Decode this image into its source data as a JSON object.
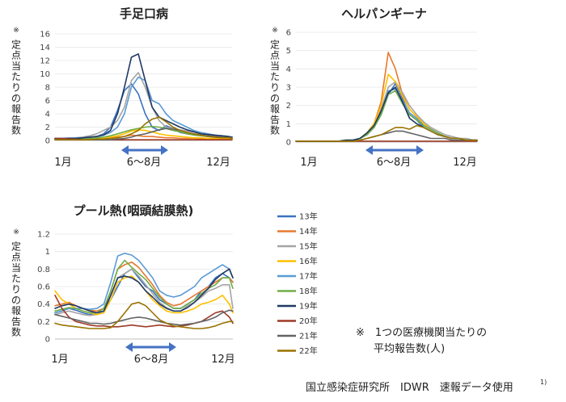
{
  "y_axis_label": "※定点当たりの報告数",
  "note": {
    "line1": "※　1つの医療機関当たりの",
    "line2": "平均報告数(人)"
  },
  "source": "国立感染症研究所　IDWR　速報データ使用",
  "source_sup": "1)",
  "legend_title": "",
  "chart_data": [
    {
      "type": "line",
      "title": "手足口病",
      "x_labels": {
        "start": "1月",
        "end": "12月"
      },
      "season_label": "6～8月",
      "ylim": [
        0,
        16
      ],
      "yticks": [
        0,
        2,
        4,
        6,
        8,
        10,
        12,
        14,
        16
      ],
      "x": [
        1,
        3,
        5,
        7,
        9,
        11,
        13,
        15,
        17,
        19,
        21,
        23,
        25,
        27,
        29,
        31,
        33,
        35,
        37,
        39,
        41,
        43,
        45,
        47,
        49,
        51,
        52
      ],
      "series": [
        {
          "name": "13年",
          "color": "#3a72c0",
          "values": [
            0.3,
            0.3,
            0.3,
            0.3,
            0.4,
            0.5,
            0.6,
            1.0,
            2.0,
            4.5,
            7.5,
            8.5,
            7.0,
            4.0,
            2.0,
            1.5,
            2.2,
            1.8,
            1.2,
            1.0,
            0.9,
            0.8,
            0.6,
            0.5,
            0.5,
            0.4,
            0.3
          ]
        },
        {
          "name": "14年",
          "color": "#e8782f",
          "values": [
            0.2,
            0.2,
            0.2,
            0.2,
            0.2,
            0.2,
            0.3,
            0.3,
            0.4,
            0.5,
            0.6,
            0.8,
            0.7,
            0.6,
            0.6,
            0.5,
            0.4,
            0.4,
            0.3,
            0.3,
            0.3,
            0.2,
            0.2,
            0.2,
            0.2,
            0.2,
            0.2
          ]
        },
        {
          "name": "15年",
          "color": "#a5a5a5",
          "values": [
            0.3,
            0.3,
            0.4,
            0.4,
            0.5,
            0.7,
            1.0,
            1.5,
            2.0,
            3.0,
            5.0,
            9.0,
            10.2,
            8.0,
            5.0,
            3.0,
            2.0,
            1.8,
            1.6,
            1.4,
            1.3,
            1.2,
            1.0,
            0.8,
            0.6,
            0.5,
            0.4
          ]
        },
        {
          "name": "16年",
          "color": "#ffc000",
          "values": [
            0.2,
            0.2,
            0.2,
            0.2,
            0.2,
            0.3,
            0.3,
            0.4,
            0.5,
            0.7,
            1.0,
            1.4,
            1.6,
            1.5,
            1.3,
            1.0,
            0.8,
            0.7,
            0.6,
            0.5,
            0.4,
            0.4,
            0.3,
            0.3,
            0.3,
            0.3,
            0.2
          ]
        },
        {
          "name": "17年",
          "color": "#5b9bd5",
          "values": [
            0.3,
            0.3,
            0.3,
            0.4,
            0.4,
            0.5,
            0.6,
            0.8,
            1.2,
            2.0,
            4.0,
            8.0,
            9.5,
            9.0,
            6.0,
            5.5,
            4.0,
            3.0,
            2.5,
            2.0,
            1.5,
            1.2,
            1.0,
            0.8,
            0.7,
            0.6,
            0.5
          ]
        },
        {
          "name": "18年",
          "color": "#70ad47",
          "values": [
            0.2,
            0.2,
            0.2,
            0.2,
            0.3,
            0.3,
            0.4,
            0.5,
            0.7,
            1.0,
            1.3,
            1.6,
            1.8,
            2.0,
            2.1,
            2.0,
            1.8,
            1.5,
            1.3,
            1.0,
            0.8,
            0.7,
            0.6,
            0.5,
            0.5,
            0.4,
            0.4
          ]
        },
        {
          "name": "19年",
          "color": "#1f3864",
          "values": [
            0.3,
            0.3,
            0.3,
            0.3,
            0.4,
            0.5,
            0.6,
            0.8,
            1.5,
            4.0,
            8.0,
            12.5,
            13.0,
            9.0,
            5.0,
            3.5,
            3.0,
            2.5,
            2.0,
            1.6,
            1.3,
            1.0,
            0.9,
            0.8,
            0.7,
            0.6,
            0.5
          ]
        },
        {
          "name": "20年",
          "color": "#9e3a26",
          "values": [
            0.3,
            0.3,
            0.2,
            0.2,
            0.1,
            0.1,
            0.1,
            0.1,
            0.1,
            0.1,
            0.1,
            0.1,
            0.1,
            0.1,
            0.1,
            0.1,
            0.1,
            0.1,
            0.1,
            0.1,
            0.1,
            0.1,
            0.1,
            0.1,
            0.1,
            0.1,
            0.1
          ]
        },
        {
          "name": "21年",
          "color": "#636363",
          "values": [
            0.1,
            0.1,
            0.1,
            0.1,
            0.1,
            0.1,
            0.1,
            0.1,
            0.1,
            0.2,
            0.3,
            0.5,
            0.8,
            1.0,
            1.3,
            1.6,
            1.8,
            1.7,
            1.5,
            1.2,
            1.0,
            0.8,
            0.7,
            0.6,
            0.5,
            0.4,
            0.4
          ]
        },
        {
          "name": "22年",
          "color": "#997300",
          "values": [
            0.1,
            0.1,
            0.1,
            0.1,
            0.1,
            0.1,
            0.2,
            0.2,
            0.3,
            0.4,
            0.6,
            1.0,
            1.5,
            2.5,
            3.2,
            3.5,
            2.8,
            2.0,
            1.5,
            1.2,
            1.0,
            0.8,
            0.6,
            0.5,
            0.4,
            0.4,
            0.3
          ]
        }
      ]
    },
    {
      "type": "line",
      "title": "ヘルパンギーナ",
      "x_labels": {
        "start": "1月",
        "end": "12月"
      },
      "season_label": "6～8月",
      "ylim": [
        0,
        6
      ],
      "yticks": [
        0,
        1,
        2,
        3,
        4,
        5,
        6
      ],
      "x": [
        1,
        3,
        5,
        7,
        9,
        11,
        13,
        15,
        17,
        19,
        21,
        23,
        25,
        27,
        29,
        31,
        33,
        35,
        37,
        39,
        41,
        43,
        45,
        47,
        49,
        51,
        52
      ],
      "series": [
        {
          "name": "13年",
          "color": "#3a72c0",
          "values": [
            0.05,
            0.05,
            0.05,
            0.05,
            0.05,
            0.05,
            0.05,
            0.1,
            0.1,
            0.2,
            0.4,
            0.8,
            1.5,
            2.6,
            3.2,
            2.4,
            1.5,
            1.2,
            0.8,
            0.6,
            0.4,
            0.3,
            0.2,
            0.2,
            0.1,
            0.1,
            0.1
          ]
        },
        {
          "name": "14年",
          "color": "#e8782f",
          "values": [
            0.05,
            0.05,
            0.05,
            0.05,
            0.05,
            0.05,
            0.05,
            0.1,
            0.1,
            0.2,
            0.5,
            1.0,
            2.2,
            4.9,
            4.0,
            2.6,
            1.8,
            1.4,
            1.0,
            0.7,
            0.5,
            0.3,
            0.2,
            0.2,
            0.1,
            0.1,
            0.1
          ]
        },
        {
          "name": "15年",
          "color": "#a5a5a5",
          "values": [
            0.05,
            0.05,
            0.05,
            0.05,
            0.05,
            0.05,
            0.05,
            0.1,
            0.1,
            0.2,
            0.4,
            0.9,
            1.8,
            3.0,
            3.3,
            2.7,
            2.0,
            1.5,
            1.1,
            0.8,
            0.6,
            0.4,
            0.3,
            0.2,
            0.2,
            0.1,
            0.1
          ]
        },
        {
          "name": "16年",
          "color": "#ffc000",
          "values": [
            0.05,
            0.05,
            0.05,
            0.05,
            0.05,
            0.05,
            0.05,
            0.1,
            0.1,
            0.2,
            0.5,
            1.0,
            2.0,
            3.7,
            3.3,
            2.5,
            1.8,
            1.4,
            1.0,
            0.7,
            0.5,
            0.3,
            0.2,
            0.2,
            0.1,
            0.1,
            0.1
          ]
        },
        {
          "name": "17年",
          "color": "#5b9bd5",
          "values": [
            0.05,
            0.05,
            0.05,
            0.05,
            0.05,
            0.05,
            0.05,
            0.1,
            0.1,
            0.2,
            0.4,
            0.8,
            1.6,
            2.8,
            2.9,
            2.3,
            1.6,
            1.3,
            0.9,
            0.7,
            0.5,
            0.3,
            0.2,
            0.2,
            0.1,
            0.1,
            0.1
          ]
        },
        {
          "name": "18年",
          "color": "#70ad47",
          "values": [
            0.05,
            0.05,
            0.05,
            0.05,
            0.05,
            0.05,
            0.05,
            0.1,
            0.1,
            0.2,
            0.4,
            0.8,
            1.5,
            2.6,
            2.8,
            2.1,
            1.5,
            1.2,
            0.9,
            0.7,
            0.5,
            0.3,
            0.2,
            0.2,
            0.1,
            0.1,
            0.1
          ]
        },
        {
          "name": "19年",
          "color": "#1f3864",
          "values": [
            0.05,
            0.05,
            0.05,
            0.05,
            0.05,
            0.05,
            0.05,
            0.1,
            0.1,
            0.2,
            0.5,
            0.9,
            1.7,
            2.7,
            3.0,
            2.2,
            1.3,
            1.0,
            0.8,
            0.6,
            0.4,
            0.3,
            0.2,
            0.2,
            0.1,
            0.1,
            0.1
          ]
        },
        {
          "name": "20年",
          "color": "#9e3a26",
          "values": [
            0.05,
            0.05,
            0.05,
            0.05,
            0.05,
            0.05,
            0.05,
            0.05,
            0.05,
            0.05,
            0.05,
            0.05,
            0.05,
            0.05,
            0.05,
            0.05,
            0.05,
            0.05,
            0.05,
            0.05,
            0.05,
            0.05,
            0.05,
            0.05,
            0.05,
            0.05,
            0.05
          ]
        },
        {
          "name": "21年",
          "color": "#636363",
          "values": [
            0.05,
            0.05,
            0.05,
            0.05,
            0.05,
            0.05,
            0.05,
            0.05,
            0.05,
            0.1,
            0.2,
            0.3,
            0.4,
            0.5,
            0.6,
            0.6,
            0.5,
            0.4,
            0.3,
            0.2,
            0.2,
            0.2,
            0.1,
            0.1,
            0.1,
            0.1,
            0.1
          ]
        },
        {
          "name": "22年",
          "color": "#997300",
          "values": [
            0.05,
            0.05,
            0.05,
            0.05,
            0.05,
            0.05,
            0.05,
            0.05,
            0.05,
            0.1,
            0.2,
            0.3,
            0.4,
            0.6,
            0.8,
            0.8,
            0.7,
            0.9,
            0.8,
            0.6,
            0.4,
            0.3,
            0.2,
            0.2,
            0.1,
            0.1,
            0.1
          ]
        }
      ]
    },
    {
      "type": "line",
      "title": "プール熱(咽頭結膜熱)",
      "x_labels": {
        "start": "1月",
        "end": "12月"
      },
      "season_label": "6～8月",
      "ylim": [
        0,
        1.2
      ],
      "yticks": [
        0,
        0.2,
        0.4,
        0.6,
        0.8,
        1,
        1.2
      ],
      "x": [
        1,
        3,
        5,
        7,
        9,
        11,
        13,
        15,
        17,
        19,
        21,
        23,
        25,
        27,
        29,
        31,
        33,
        35,
        37,
        39,
        41,
        43,
        45,
        47,
        49,
        51,
        52
      ],
      "series": [
        {
          "name": "13年",
          "color": "#3a72c0",
          "values": [
            0.3,
            0.32,
            0.35,
            0.33,
            0.3,
            0.28,
            0.3,
            0.35,
            0.45,
            0.6,
            0.75,
            0.8,
            0.7,
            0.6,
            0.55,
            0.45,
            0.4,
            0.35,
            0.35,
            0.4,
            0.45,
            0.55,
            0.6,
            0.7,
            0.75,
            0.7,
            0.65
          ]
        },
        {
          "name": "14年",
          "color": "#e8782f",
          "values": [
            0.38,
            0.4,
            0.42,
            0.38,
            0.35,
            0.33,
            0.32,
            0.35,
            0.55,
            0.8,
            0.85,
            0.88,
            0.82,
            0.72,
            0.62,
            0.5,
            0.42,
            0.38,
            0.4,
            0.45,
            0.5,
            0.55,
            0.6,
            0.65,
            0.7,
            0.7,
            0.65
          ]
        },
        {
          "name": "15年",
          "color": "#a5a5a5",
          "values": [
            0.28,
            0.3,
            0.32,
            0.3,
            0.28,
            0.27,
            0.28,
            0.32,
            0.5,
            0.7,
            0.75,
            0.8,
            0.72,
            0.62,
            0.52,
            0.42,
            0.36,
            0.32,
            0.32,
            0.38,
            0.42,
            0.48,
            0.55,
            0.58,
            0.62,
            0.62,
            0.35
          ]
        },
        {
          "name": "16年",
          "color": "#ffc000",
          "values": [
            0.55,
            0.45,
            0.4,
            0.35,
            0.32,
            0.3,
            0.28,
            0.3,
            0.45,
            0.65,
            0.7,
            0.72,
            0.65,
            0.55,
            0.45,
            0.38,
            0.32,
            0.3,
            0.3,
            0.32,
            0.35,
            0.4,
            0.42,
            0.45,
            0.5,
            0.4,
            0.3
          ]
        },
        {
          "name": "17年",
          "color": "#5b9bd5",
          "values": [
            0.3,
            0.32,
            0.35,
            0.35,
            0.35,
            0.34,
            0.35,
            0.4,
            0.65,
            0.95,
            0.98,
            0.96,
            0.9,
            0.8,
            0.7,
            0.55,
            0.5,
            0.48,
            0.5,
            0.55,
            0.6,
            0.7,
            0.75,
            0.8,
            0.85,
            0.8,
            0.7
          ]
        },
        {
          "name": "18年",
          "color": "#70ad47",
          "values": [
            0.32,
            0.34,
            0.36,
            0.35,
            0.32,
            0.3,
            0.3,
            0.35,
            0.55,
            0.8,
            0.9,
            0.82,
            0.75,
            0.68,
            0.58,
            0.48,
            0.4,
            0.35,
            0.35,
            0.4,
            0.45,
            0.52,
            0.58,
            0.62,
            0.7,
            0.7,
            0.58
          ]
        },
        {
          "name": "19年",
          "color": "#1f3864",
          "values": [
            0.35,
            0.38,
            0.4,
            0.38,
            0.35,
            0.32,
            0.3,
            0.32,
            0.5,
            0.7,
            0.72,
            0.7,
            0.65,
            0.55,
            0.48,
            0.4,
            0.35,
            0.32,
            0.32,
            0.36,
            0.42,
            0.5,
            0.58,
            0.68,
            0.75,
            0.8,
            0.7
          ]
        },
        {
          "name": "20年",
          "color": "#9e3a26",
          "values": [
            0.5,
            0.35,
            0.25,
            0.2,
            0.18,
            0.16,
            0.15,
            0.15,
            0.14,
            0.14,
            0.15,
            0.16,
            0.15,
            0.14,
            0.15,
            0.16,
            0.15,
            0.14,
            0.15,
            0.16,
            0.18,
            0.2,
            0.25,
            0.3,
            0.32,
            0.25,
            0.18
          ]
        },
        {
          "name": "21年",
          "color": "#636363",
          "values": [
            0.28,
            0.26,
            0.24,
            0.22,
            0.2,
            0.18,
            0.18,
            0.17,
            0.18,
            0.2,
            0.22,
            0.24,
            0.25,
            0.24,
            0.22,
            0.2,
            0.18,
            0.17,
            0.16,
            0.17,
            0.18,
            0.2,
            0.22,
            0.25,
            0.3,
            0.33,
            0.32
          ]
        },
        {
          "name": "22年",
          "color": "#997300",
          "values": [
            0.18,
            0.16,
            0.15,
            0.14,
            0.13,
            0.12,
            0.12,
            0.12,
            0.13,
            0.2,
            0.3,
            0.4,
            0.42,
            0.38,
            0.3,
            0.22,
            0.18,
            0.15,
            0.14,
            0.13,
            0.12,
            0.12,
            0.13,
            0.15,
            0.18,
            0.2,
            0.2
          ]
        }
      ]
    }
  ]
}
